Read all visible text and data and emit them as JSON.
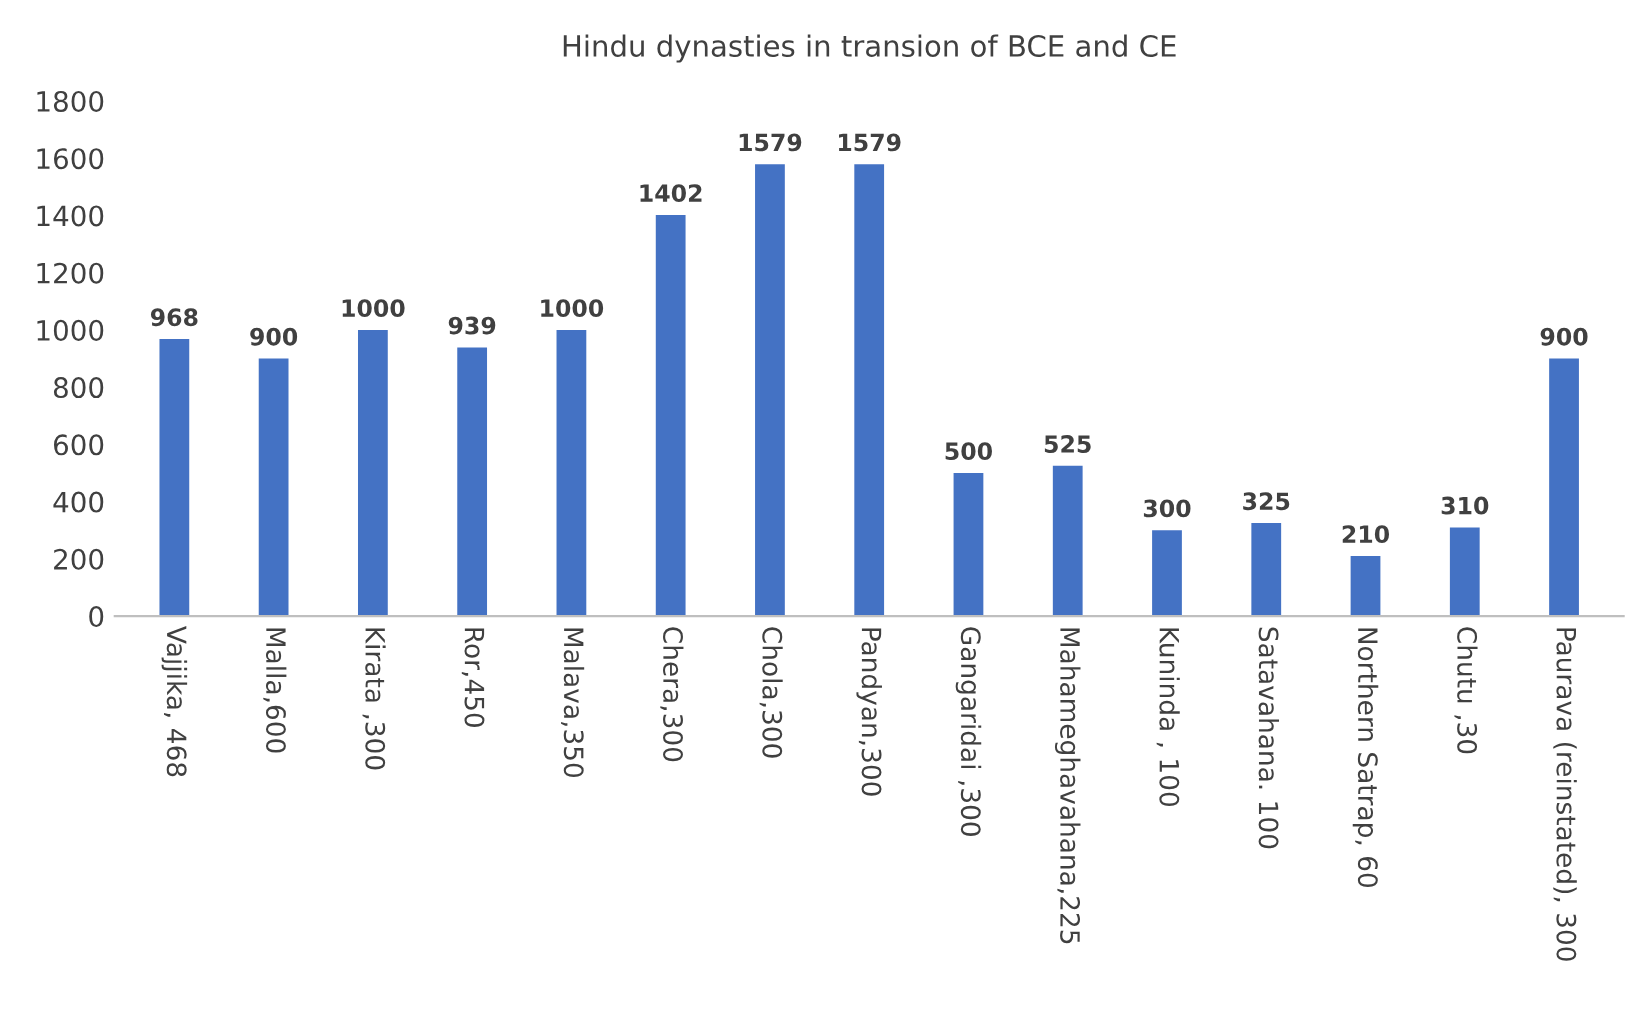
{
  "chart_data": {
    "type": "bar",
    "title": "Hindu dynasties in transion of BCE and CE",
    "categories": [
      "Vajjika, 468",
      "Malla,600",
      "Kirata ,300",
      "Ror,450",
      "Malava,350",
      "Chera,300",
      "Chola,300",
      "Pandyan,300",
      "Gangaridai ,300",
      "Mahameghavahana,225",
      "Kuninda , 100",
      "Satavahana. 100",
      "Northern Satrap, 60",
      "Chutu ,30",
      "Paurava (reinstated), 300"
    ],
    "values": [
      968,
      900,
      1000,
      939,
      1000,
      1402,
      1579,
      1579,
      500,
      525,
      300,
      325,
      210,
      310,
      900
    ],
    "color": "#4472c4",
    "ylim": [
      0,
      1800
    ],
    "yticks": [
      0,
      200,
      400,
      600,
      800,
      1000,
      1200,
      1400,
      1600,
      1800
    ],
    "data_labels": true,
    "grid": false
  }
}
